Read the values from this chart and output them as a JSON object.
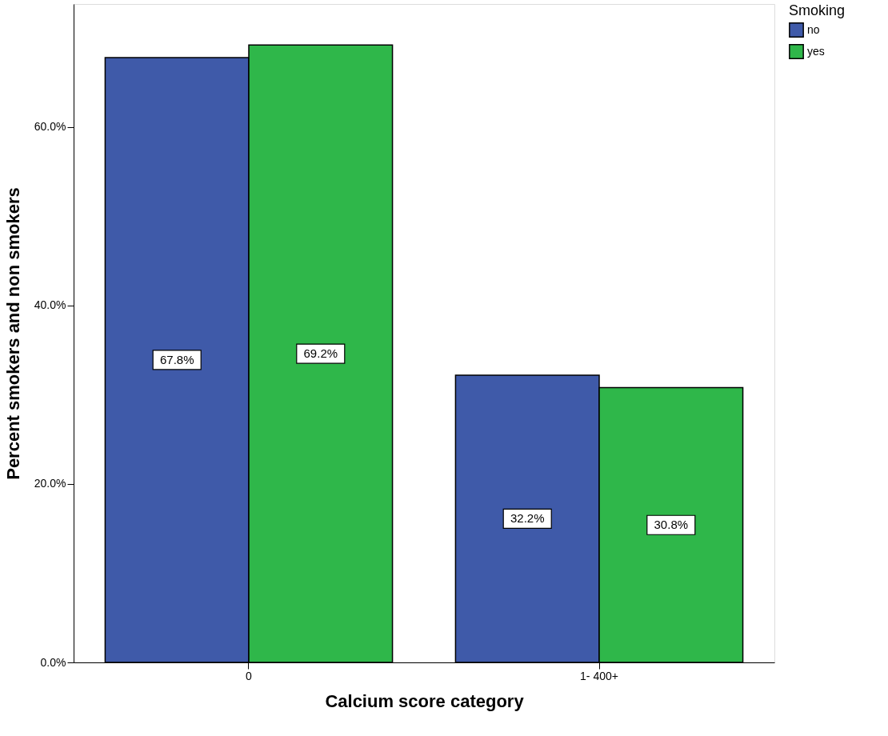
{
  "chart_data": {
    "type": "bar",
    "xlabel": "Calcium score category",
    "ylabel": "Percent smokers and non smokers",
    "legend_title": "Smoking",
    "categories": [
      "0",
      "1- 400+"
    ],
    "series": [
      {
        "name": "no",
        "color": "#3f5aa9",
        "values": [
          67.8,
          32.2
        ],
        "value_labels": [
          "67.8%",
          "32.2%"
        ]
      },
      {
        "name": "yes",
        "color": "#2fb74a",
        "values": [
          69.2,
          30.8
        ],
        "value_labels": [
          "69.2%",
          "30.8%"
        ]
      }
    ],
    "ylim": [
      0,
      73.8
    ],
    "yticks": [
      {
        "value": 0,
        "label": "0.0%"
      },
      {
        "value": 20,
        "label": "20.0%"
      },
      {
        "value": 40,
        "label": "40.0%"
      },
      {
        "value": 60,
        "label": "60.0%"
      }
    ],
    "grid": false,
    "legend": "top right"
  }
}
